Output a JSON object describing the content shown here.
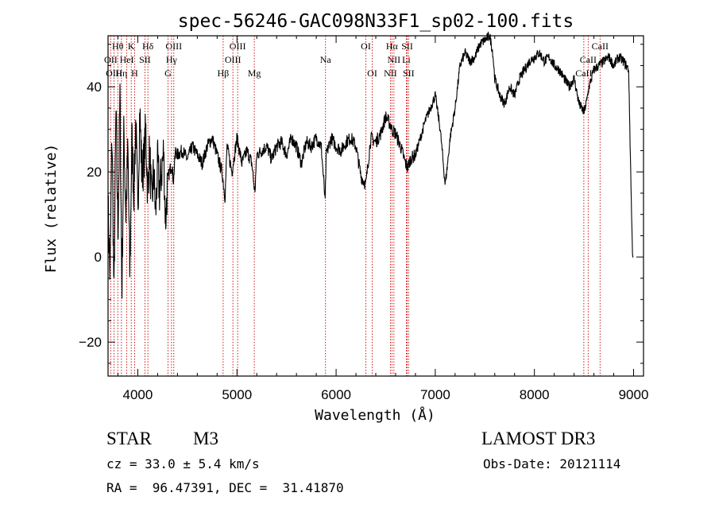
{
  "chart_data": {
    "type": "line",
    "title": "spec-56246-GAC098N33F1_sp02-100.fits",
    "xlabel": "Wavelength (Å)",
    "ylabel": "Flux (relative)",
    "xlim": [
      3700,
      9100
    ],
    "ylim": [
      -28,
      52
    ],
    "xticks": [
      4000,
      5000,
      6000,
      7000,
      8000,
      9000
    ],
    "yticks": [
      -20,
      0,
      20,
      40
    ],
    "xtick_labels": [
      "4000",
      "5000",
      "6000",
      "7000",
      "8000",
      "9000"
    ],
    "ytick_labels": [
      "−20",
      "0",
      "20",
      "40"
    ],
    "series": [
      {
        "name": "flux",
        "x": [
          3700,
          3720,
          3740,
          3760,
          3780,
          3800,
          3820,
          3840,
          3860,
          3880,
          3900,
          3920,
          3940,
          3960,
          3980,
          4000,
          4020,
          4040,
          4060,
          4080,
          4100,
          4120,
          4140,
          4160,
          4180,
          4200,
          4220,
          4240,
          4260,
          4280,
          4300,
          4320,
          4340,
          4360,
          4380,
          4400,
          4450,
          4500,
          4550,
          4600,
          4650,
          4700,
          4750,
          4800,
          4850,
          4880,
          4900,
          4950,
          5000,
          5050,
          5100,
          5150,
          5180,
          5200,
          5250,
          5300,
          5350,
          5400,
          5450,
          5500,
          5550,
          5600,
          5650,
          5700,
          5750,
          5800,
          5850,
          5890,
          5900,
          5950,
          6000,
          6050,
          6100,
          6150,
          6200,
          6250,
          6300,
          6350,
          6400,
          6450,
          6500,
          6550,
          6563,
          6600,
          6650,
          6700,
          6720,
          6750,
          6800,
          6850,
          6900,
          6950,
          7000,
          7050,
          7100,
          7120,
          7150,
          7200,
          7250,
          7300,
          7350,
          7400,
          7450,
          7500,
          7550,
          7580,
          7600,
          7650,
          7700,
          7750,
          7800,
          7850,
          7900,
          7950,
          8000,
          8050,
          8100,
          8150,
          8200,
          8250,
          8300,
          8350,
          8400,
          8450,
          8500,
          8530,
          8550,
          8600,
          8650,
          8700,
          8750,
          8800,
          8850,
          8900,
          8950,
          8980,
          8990,
          9000
        ],
        "values": [
          12,
          -5,
          30,
          -10,
          35,
          5,
          38,
          -8,
          30,
          10,
          25,
          -5,
          28,
          15,
          32,
          10,
          35,
          20,
          22,
          30,
          15,
          25,
          12,
          20,
          10,
          22,
          15,
          20,
          25,
          8,
          18,
          20,
          22,
          18,
          25,
          24,
          25,
          23,
          26,
          24,
          22,
          26,
          28,
          24,
          20,
          14,
          26,
          20,
          28,
          22,
          25,
          22,
          15,
          24,
          25,
          26,
          23,
          26,
          27,
          24,
          28,
          26,
          22,
          27,
          26,
          28,
          26,
          13,
          24,
          28,
          26,
          25,
          27,
          28,
          26,
          19,
          17,
          28,
          27,
          29,
          33,
          31,
          30,
          29,
          26,
          22,
          21,
          23,
          24,
          28,
          32,
          35,
          38,
          30,
          17,
          21,
          28,
          35,
          45,
          48,
          46,
          47,
          50,
          51,
          52,
          48,
          42,
          38,
          36,
          40,
          38,
          42,
          44,
          46,
          47,
          48,
          46,
          47,
          45,
          44,
          42,
          40,
          42,
          36,
          34,
          37,
          40,
          44,
          45,
          46,
          47,
          45,
          47,
          46,
          44,
          10,
          0,
          0
        ]
      }
    ],
    "lines": [
      {
        "label": "Hθ",
        "x": 3798,
        "row": 0
      },
      {
        "label": "K",
        "x": 3934,
        "row": 0
      },
      {
        "label": "Hδ",
        "x": 4102,
        "row": 0
      },
      {
        "label": "OIII",
        "x": 4363,
        "row": 0
      },
      {
        "label": "OIII",
        "x": 5007,
        "row": 0
      },
      {
        "label": "OI",
        "x": 6300,
        "row": 0
      },
      {
        "label": "Hα",
        "x": 6563,
        "row": 0
      },
      {
        "label": "SII",
        "x": 6717,
        "row": 0
      },
      {
        "label": "CaII",
        "x": 8662,
        "row": 0
      },
      {
        "label": "OII",
        "x": 3727,
        "row": 1
      },
      {
        "label": "HeI",
        "x": 3889,
        "row": 1
      },
      {
        "label": "SII",
        "x": 4072,
        "row": 1
      },
      {
        "label": "Hγ",
        "x": 4340,
        "row": 1
      },
      {
        "label": "OIII",
        "x": 4959,
        "row": 1
      },
      {
        "label": "Na",
        "x": 5893,
        "row": 1
      },
      {
        "label": "NII",
        "x": 6583,
        "row": 1
      },
      {
        "label": "Li",
        "x": 6708,
        "row": 1
      },
      {
        "label": "CaII",
        "x": 8542,
        "row": 1
      },
      {
        "label": "OIII",
        "x": 3760,
        "row": 2
      },
      {
        "label": "Hη",
        "x": 3835,
        "row": 2
      },
      {
        "label": "H",
        "x": 3968,
        "row": 2
      },
      {
        "label": "G",
        "x": 4305,
        "row": 2
      },
      {
        "label": "Hβ",
        "x": 4861,
        "row": 2
      },
      {
        "label": "Mg",
        "x": 5175,
        "row": 2
      },
      {
        "label": "OI",
        "x": 6364,
        "row": 2
      },
      {
        "label": "NII",
        "x": 6548,
        "row": 2
      },
      {
        "label": "SII",
        "x": 6731,
        "row": 2
      },
      {
        "label": "CaII",
        "x": 8498,
        "row": 2
      }
    ],
    "colors": {
      "axis": "#000000",
      "series": "#000000",
      "line_marker": "#cc0000"
    }
  },
  "info": {
    "class": "STAR",
    "subclass": "M3",
    "survey": "LAMOST DR3",
    "cz": "cz = 33.0 ± 5.4 km/s",
    "obs_date": "Obs-Date: 20121114",
    "coords": "RA =  96.47391, DEC =  31.41870"
  }
}
